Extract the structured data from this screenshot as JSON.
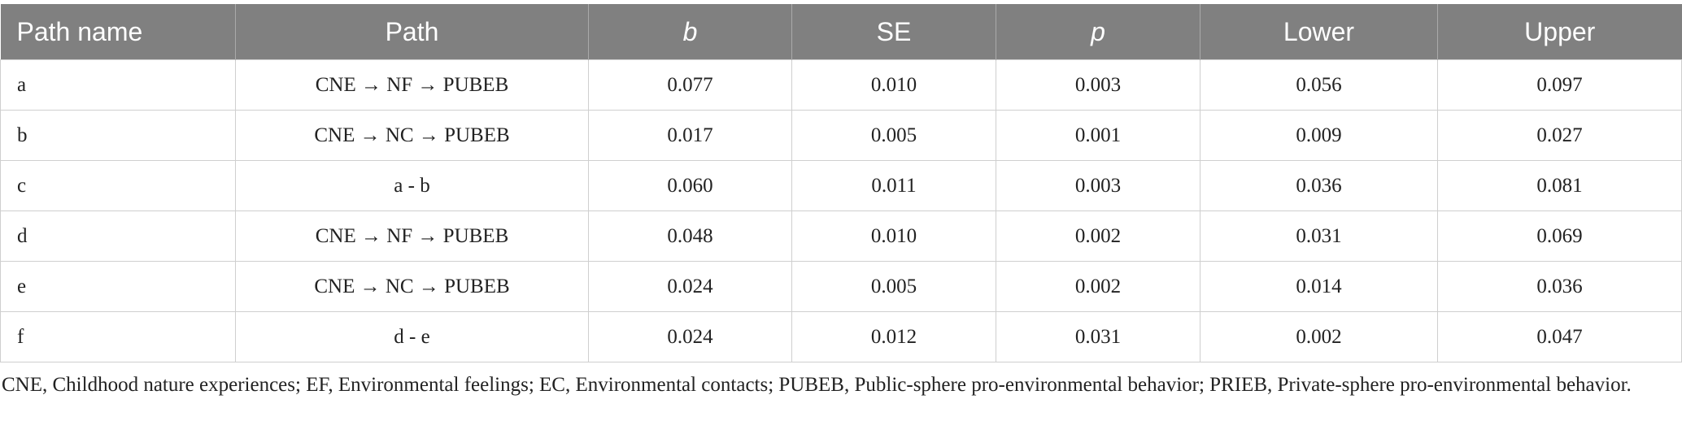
{
  "table": {
    "columns": [
      "Path name",
      "Path",
      "b",
      "SE",
      "p",
      "Lower",
      "Upper"
    ],
    "rows": [
      [
        "a",
        "CNE → NF → PUBEB",
        "0.077",
        "0.010",
        "0.003",
        "0.056",
        "0.097"
      ],
      [
        "b",
        "CNE → NC → PUBEB",
        "0.017",
        "0.005",
        "0.001",
        "0.009",
        "0.027"
      ],
      [
        "c",
        "a - b",
        "0.060",
        "0.011",
        "0.003",
        "0.036",
        "0.081"
      ],
      [
        "d",
        "CNE → NF → PUBEB",
        "0.048",
        "0.010",
        "0.002",
        "0.031",
        "0.069"
      ],
      [
        "e",
        "CNE → NC → PUBEB",
        "0.024",
        "0.005",
        "0.002",
        "0.014",
        "0.036"
      ],
      [
        "f",
        "d - e",
        "0.024",
        "0.012",
        "0.031",
        "0.002",
        "0.047"
      ]
    ]
  },
  "footnote": "CNE, Childhood nature experiences; EF, Environmental feelings; EC, Environmental contacts; PUBEB, Public-sphere pro-environmental behavior; PRIEB, Private-sphere pro-environmental behavior."
}
